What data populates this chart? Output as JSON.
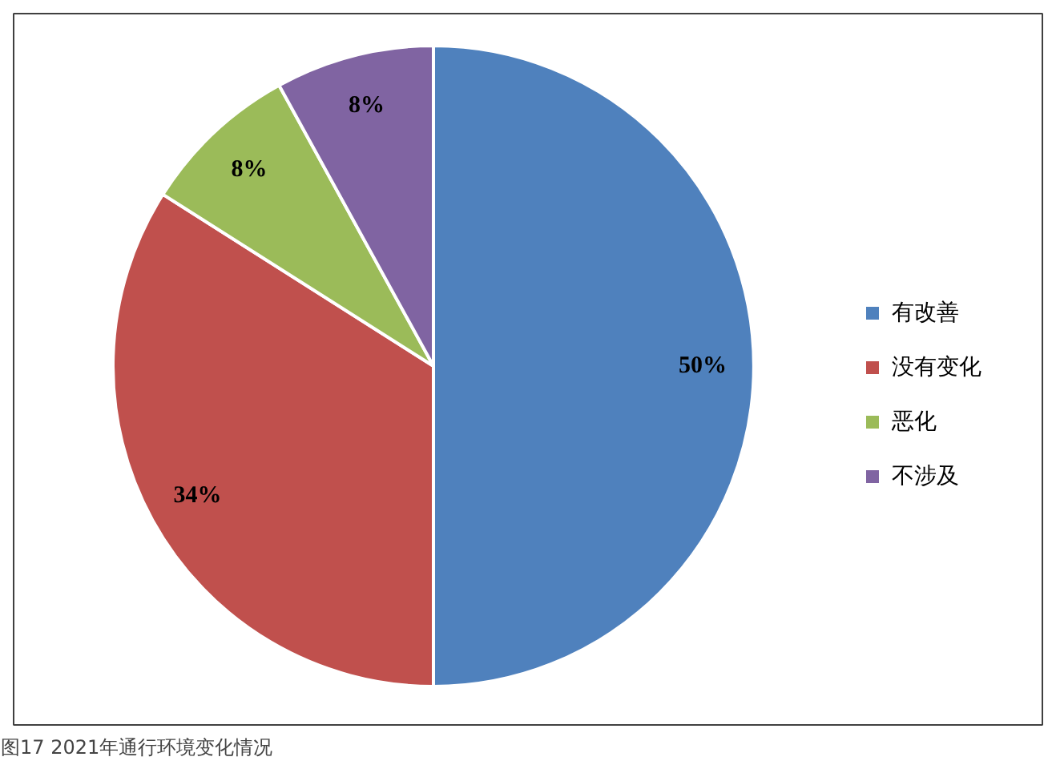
{
  "chart_data": {
    "type": "pie",
    "categories": [
      "有改善",
      "没有变化",
      "恶化",
      "不涉及"
    ],
    "values": [
      50,
      34,
      8,
      8
    ],
    "colors": [
      "#4f81bd",
      "#c0504d",
      "#9bbb59",
      "#8064a2"
    ],
    "value_labels": [
      "50%",
      "34%",
      "8%",
      "8%"
    ],
    "legend": "right",
    "annotations": [
      "图17 2021年通行环境变化情况"
    ]
  }
}
